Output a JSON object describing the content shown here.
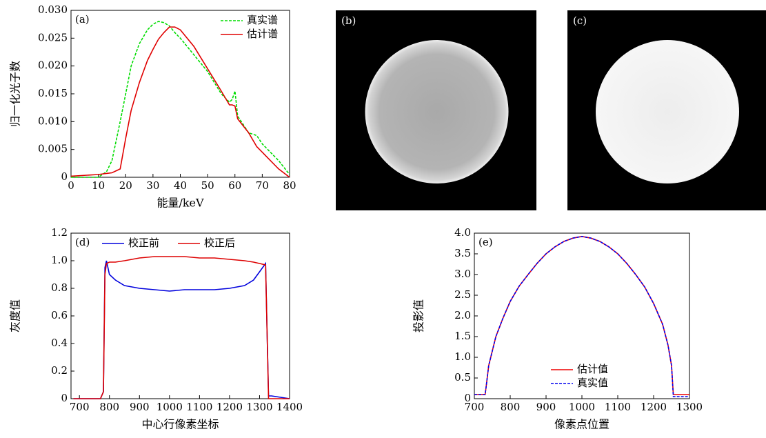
{
  "chart_data": [
    {
      "type": "line",
      "label": "(a)",
      "xlabel": "能量/keV",
      "ylabel": "归一化光子数",
      "x": [
        0,
        10,
        13,
        15,
        18,
        20,
        22,
        25,
        28,
        30,
        32,
        34,
        36,
        38,
        40,
        45,
        50,
        55,
        58,
        59,
        60,
        61,
        65,
        68,
        70,
        72,
        76,
        80
      ],
      "series": [
        {
          "name": "真实谱",
          "color": "#00dd00",
          "dash": true,
          "values": [
            0,
            0,
            0.001,
            0.003,
            0.01,
            0.015,
            0.02,
            0.024,
            0.0265,
            0.0275,
            0.028,
            0.0278,
            0.0272,
            0.026,
            0.025,
            0.022,
            0.019,
            0.015,
            0.0135,
            0.014,
            0.0155,
            0.011,
            0.008,
            0.0075,
            0.006,
            0.005,
            0.003,
            0.0005
          ]
        },
        {
          "name": "估计谱",
          "color": "#e00000",
          "dash": false,
          "values": [
            0.0002,
            0.0005,
            0.0007,
            0.0008,
            0.0015,
            0.007,
            0.012,
            0.017,
            0.021,
            0.023,
            0.0248,
            0.026,
            0.027,
            0.027,
            0.0265,
            0.0235,
            0.0195,
            0.0155,
            0.013,
            0.013,
            0.0128,
            0.0105,
            0.008,
            0.0055,
            0.0045,
            0.0035,
            0.0015,
            0
          ]
        }
      ],
      "xlim": [
        0,
        80
      ],
      "xticks": [
        0,
        10,
        20,
        30,
        40,
        50,
        60,
        70,
        80
      ],
      "ylim": [
        0,
        0.03
      ],
      "yticks": [
        0,
        0.005,
        {
          "value": 0.01,
          "label": "0.010"
        },
        0.015,
        {
          "value": 0.02,
          "label": "0.020"
        },
        0.025,
        {
          "value": 0.03,
          "label": "0.030"
        }
      ],
      "legend": "upper right"
    },
    {
      "type": "image",
      "label": "(b)",
      "style": "rim"
    },
    {
      "type": "image",
      "label": "(c)",
      "style": "flat"
    },
    {
      "type": "line",
      "label": "(d)",
      "xlabel": "中心行像素坐标",
      "ylabel": "灰度值",
      "x": [
        680,
        770,
        780,
        785,
        790,
        800,
        820,
        850,
        900,
        950,
        1000,
        1050,
        1100,
        1150,
        1200,
        1250,
        1280,
        1300,
        1320,
        1325,
        1330,
        1340,
        1400
      ],
      "series": [
        {
          "name": "校正前",
          "color": "#0000dd",
          "dash": false,
          "values": [
            0,
            0,
            0.05,
            0.95,
            1.0,
            0.9,
            0.86,
            0.82,
            0.8,
            0.79,
            0.78,
            0.79,
            0.79,
            0.79,
            0.8,
            0.82,
            0.86,
            0.92,
            0.98,
            0.5,
            0.02,
            0.02,
            0
          ]
        },
        {
          "name": "校正后",
          "color": "#dd0000",
          "dash": false,
          "values": [
            0,
            0,
            0.05,
            0.9,
            0.98,
            0.99,
            0.99,
            1.0,
            1.02,
            1.03,
            1.03,
            1.03,
            1.02,
            1.02,
            1.01,
            1.0,
            0.99,
            0.98,
            0.97,
            0.5,
            0,
            0,
            0
          ]
        }
      ],
      "xlim": [
        672,
        1400
      ],
      "xticks": [
        700,
        800,
        900,
        1000,
        1100,
        1200,
        1300,
        1400
      ],
      "ylim": [
        0,
        1.2
      ],
      "yticks": [
        0,
        0.2,
        0.4,
        0.6,
        0.8,
        {
          "value": 1,
          "label": "1.0"
        },
        1.2
      ],
      "legend": "upper left"
    },
    {
      "type": "line",
      "label": "(e)",
      "xlabel": "像素点位置",
      "ylabel": "投影值",
      "x": [
        700,
        730,
        733,
        740,
        760,
        780,
        800,
        825,
        850,
        875,
        900,
        925,
        950,
        975,
        1000,
        1025,
        1050,
        1075,
        1100,
        1125,
        1150,
        1175,
        1200,
        1225,
        1240,
        1250,
        1255,
        1300
      ],
      "series": [
        {
          "name": "估计值",
          "color": "#ee0000",
          "dash": false,
          "values": [
            0.1,
            0.1,
            0.3,
            0.8,
            1.5,
            1.95,
            2.35,
            2.72,
            3.0,
            3.27,
            3.5,
            3.67,
            3.8,
            3.88,
            3.92,
            3.88,
            3.8,
            3.67,
            3.5,
            3.27,
            3.0,
            2.7,
            2.3,
            1.8,
            1.3,
            0.8,
            0.1,
            0.1
          ]
        },
        {
          "name": "真实值",
          "color": "#0000ee",
          "dash": true,
          "values": [
            0.1,
            0.1,
            0.3,
            0.8,
            1.5,
            1.95,
            2.35,
            2.72,
            3.0,
            3.27,
            3.5,
            3.67,
            3.8,
            3.88,
            3.92,
            3.88,
            3.8,
            3.67,
            3.5,
            3.27,
            3.0,
            2.7,
            2.3,
            1.8,
            1.3,
            0.8,
            0.05,
            0.05
          ]
        }
      ],
      "xlim": [
        700,
        1300
      ],
      "xticks": [
        700,
        800,
        900,
        1000,
        1100,
        1200,
        1300
      ],
      "ylim": [
        0,
        4
      ],
      "yticks": [
        0,
        0.5,
        {
          "value": 1,
          "label": "1.0"
        },
        1.5,
        {
          "value": 2,
          "label": "2.0"
        },
        2.5,
        {
          "value": 3,
          "label": "3.0"
        },
        3.5,
        {
          "value": 4,
          "label": "4.0"
        }
      ],
      "legend": "lower center"
    }
  ]
}
